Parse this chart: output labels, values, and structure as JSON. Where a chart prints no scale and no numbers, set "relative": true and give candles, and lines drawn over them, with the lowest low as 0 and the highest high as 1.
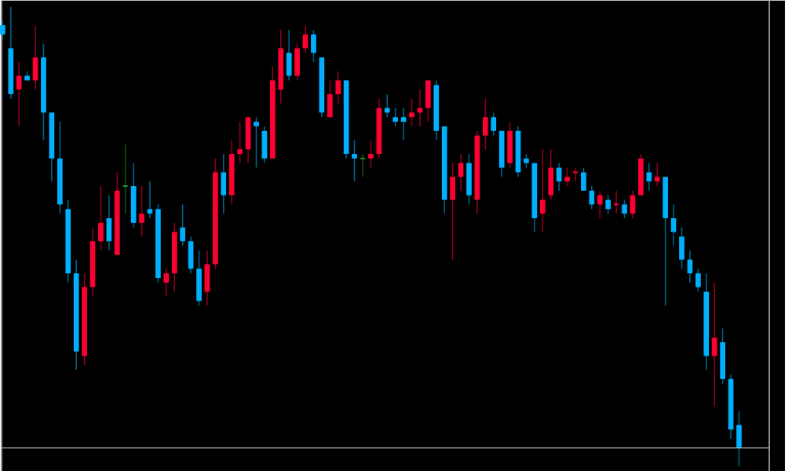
{
  "chart_data": {
    "type": "candlestick",
    "relative": true,
    "ref_lines": [
      {
        "axis": "y",
        "value": 0.04,
        "color": "#b2b2b2"
      }
    ],
    "categories": [
      null,
      null,
      null,
      null,
      null,
      null,
      null,
      null,
      null,
      null,
      null,
      null,
      null,
      null,
      null,
      null,
      null,
      null,
      null,
      null,
      null,
      null,
      null,
      null,
      null,
      null,
      null,
      null,
      null,
      null,
      null,
      null,
      null,
      null,
      null,
      null,
      null,
      null,
      null,
      null,
      null,
      null,
      null,
      null,
      null,
      null,
      null,
      null,
      null,
      null,
      null,
      null,
      null,
      null,
      null,
      null,
      null,
      null,
      null,
      null,
      null,
      null,
      null,
      null,
      null,
      null,
      null,
      null,
      null,
      null,
      null,
      null,
      null,
      null,
      null,
      null,
      null,
      null,
      null,
      null,
      null,
      null,
      null,
      null,
      null,
      null,
      null,
      null,
      null,
      null,
      null
    ],
    "ohlc": [
      [
        0.96,
        0.97,
        0.93,
        0.94
      ],
      [
        0.91,
        1,
        0.8,
        0.81
      ],
      [
        0.82,
        0.88,
        0.74,
        0.85
      ],
      [
        0.85,
        0.86,
        0.84,
        0.84
      ],
      [
        0.84,
        0.96,
        0.82,
        0.89
      ],
      [
        0.89,
        0.92,
        0.71,
        0.77
      ],
      [
        0.77,
        0.77,
        0.62,
        0.67
      ],
      [
        0.67,
        0.75,
        0.55,
        0.57
      ],
      [
        0.56,
        0.58,
        0.4,
        0.42
      ],
      [
        0.42,
        0.45,
        0.21,
        0.25
      ],
      [
        0.24,
        0.42,
        0.22,
        0.39
      ],
      [
        0.39,
        0.52,
        0.37,
        0.49
      ],
      [
        0.49,
        0.61,
        0.47,
        0.53
      ],
      [
        0.54,
        0.59,
        0.47,
        0.49
      ],
      [
        0.46,
        0.64,
        0.46,
        0.6
      ],
      [
        0.61,
        0.7,
        0.55,
        0.61
      ],
      [
        0.61,
        0.66,
        0.52,
        0.53
      ],
      [
        0.53,
        0.61,
        0.5,
        0.55
      ],
      [
        0.56,
        0.62,
        0.54,
        0.55
      ],
      [
        0.56,
        0.57,
        0.4,
        0.41
      ],
      [
        0.4,
        0.43,
        0.37,
        0.42
      ],
      [
        0.42,
        0.53,
        0.38,
        0.51
      ],
      [
        0.52,
        0.57,
        0.48,
        0.49
      ],
      [
        0.49,
        0.5,
        0.42,
        0.43
      ],
      [
        0.43,
        0.47,
        0.35,
        0.36
      ],
      [
        0.38,
        0.47,
        0.35,
        0.44
      ],
      [
        0.44,
        0.67,
        0.43,
        0.64
      ],
      [
        0.64,
        0.68,
        0.55,
        0.59
      ],
      [
        0.59,
        0.71,
        0.57,
        0.68
      ],
      [
        0.68,
        0.75,
        0.66,
        0.69
      ],
      [
        0.69,
        0.76,
        0.66,
        0.76
      ],
      [
        0.75,
        0.76,
        0.65,
        0.74
      ],
      [
        0.73,
        0.74,
        0.66,
        0.67
      ],
      [
        0.67,
        0.87,
        0.67,
        0.84
      ],
      [
        0.82,
        0.95,
        0.79,
        0.91
      ],
      [
        0.9,
        0.95,
        0.84,
        0.85
      ],
      [
        0.85,
        0.92,
        0.84,
        0.91
      ],
      [
        0.91,
        0.96,
        0.9,
        0.94
      ],
      [
        0.94,
        0.95,
        0.88,
        0.9
      ],
      [
        0.89,
        0.89,
        0.76,
        0.77
      ],
      [
        0.76,
        0.84,
        0.76,
        0.81
      ],
      [
        0.81,
        0.86,
        0.79,
        0.84
      ],
      [
        0.84,
        0.84,
        0.67,
        0.68
      ],
      [
        0.68,
        0.71,
        0.62,
        0.67
      ],
      [
        0.67,
        0.68,
        0.63,
        0.67
      ],
      [
        0.67,
        0.71,
        0.65,
        0.68
      ],
      [
        0.68,
        0.8,
        0.67,
        0.78
      ],
      [
        0.78,
        0.81,
        0.76,
        0.77
      ],
      [
        0.76,
        0.78,
        0.74,
        0.75
      ],
      [
        0.76,
        0.78,
        0.71,
        0.75
      ],
      [
        0.76,
        0.8,
        0.74,
        0.77
      ],
      [
        0.77,
        0.82,
        0.74,
        0.78
      ],
      [
        0.78,
        0.84,
        0.75,
        0.84
      ],
      [
        0.83,
        0.84,
        0.71,
        0.73
      ],
      [
        0.74,
        0.74,
        0.55,
        0.58
      ],
      [
        0.58,
        0.66,
        0.45,
        0.63
      ],
      [
        0.63,
        0.68,
        0.6,
        0.66
      ],
      [
        0.66,
        0.68,
        0.57,
        0.59
      ],
      [
        0.58,
        0.73,
        0.55,
        0.72
      ],
      [
        0.72,
        0.8,
        0.69,
        0.76
      ],
      [
        0.76,
        0.77,
        0.72,
        0.73
      ],
      [
        0.73,
        0.73,
        0.63,
        0.65
      ],
      [
        0.66,
        0.75,
        0.65,
        0.73
      ],
      [
        0.73,
        0.74,
        0.63,
        0.64
      ],
      [
        0.67,
        0.68,
        0.65,
        0.66
      ],
      [
        0.66,
        0.66,
        0.51,
        0.54
      ],
      [
        0.55,
        0.69,
        0.51,
        0.58
      ],
      [
        0.59,
        0.69,
        0.58,
        0.65
      ],
      [
        0.65,
        0.66,
        0.6,
        0.62
      ],
      [
        0.62,
        0.65,
        0.61,
        0.63
      ],
      [
        0.64,
        0.65,
        0.62,
        0.64
      ],
      [
        0.64,
        0.65,
        0.6,
        0.6
      ],
      [
        0.6,
        0.61,
        0.56,
        0.57
      ],
      [
        0.57,
        0.6,
        0.54,
        0.59
      ],
      [
        0.58,
        0.59,
        0.55,
        0.56
      ],
      [
        0.57,
        0.6,
        0.55,
        0.57
      ],
      [
        0.57,
        0.58,
        0.54,
        0.55
      ],
      [
        0.55,
        0.6,
        0.54,
        0.59
      ],
      [
        0.59,
        0.68,
        0.59,
        0.67
      ],
      [
        0.64,
        0.66,
        0.6,
        0.62
      ],
      [
        0.62,
        0.66,
        0.61,
        0.63
      ],
      [
        0.63,
        0.63,
        0.35,
        0.54
      ],
      [
        0.54,
        0.57,
        0.48,
        0.51
      ],
      [
        0.5,
        0.52,
        0.43,
        0.45
      ],
      [
        0.45,
        0.47,
        0.4,
        0.42
      ],
      [
        0.42,
        0.43,
        0.38,
        0.39
      ],
      [
        0.38,
        0.42,
        0.21,
        0.24
      ],
      [
        0.24,
        0.4,
        0.13,
        0.28
      ],
      [
        0.27,
        0.3,
        0.18,
        0.19
      ],
      [
        0.19,
        0.2,
        0.06,
        0.08
      ],
      [
        0.09,
        0.12,
        0,
        0.04
      ]
    ],
    "colors": [
      "#00b0ff",
      "#00b0ff",
      "#ff0033",
      "#00b0ff",
      "#ff0033",
      "#00b0ff",
      "#00b0ff",
      "#00b0ff",
      "#00b0ff",
      "#00b0ff",
      "#ff0033",
      "#ff0033",
      "#ff0033",
      "#00b0ff",
      "#ff0033",
      "#1f8f1f",
      "#00b0ff",
      "#ff0033",
      "#00b0ff",
      "#00b0ff",
      "#ff0033",
      "#ff0033",
      "#00b0ff",
      "#00b0ff",
      "#00b0ff",
      "#ff0033",
      "#ff0033",
      "#00b0ff",
      "#ff0033",
      "#ff0033",
      "#ff0033",
      "#00b0ff",
      "#00b0ff",
      "#ff0033",
      "#ff0033",
      "#00b0ff",
      "#ff0033",
      "#ff0033",
      "#00b0ff",
      "#00b0ff",
      "#ff0033",
      "#ff0033",
      "#00b0ff",
      "#00b0ff",
      "#1f8f1f",
      "#ff0033",
      "#ff0033",
      "#00b0ff",
      "#00b0ff",
      "#00b0ff",
      "#ff0033",
      "#ff0033",
      "#ff0033",
      "#00b0ff",
      "#00b0ff",
      "#ff0033",
      "#ff0033",
      "#00b0ff",
      "#ff0033",
      "#ff0033",
      "#00b0ff",
      "#00b0ff",
      "#ff0033",
      "#00b0ff",
      "#00b0ff",
      "#00b0ff",
      "#ff0033",
      "#ff0033",
      "#00b0ff",
      "#ff0033",
      "#ff0033",
      "#00b0ff",
      "#00b0ff",
      "#ff0033",
      "#00b0ff",
      "#ff0033",
      "#00b0ff",
      "#ff0033",
      "#ff0033",
      "#00b0ff",
      "#ff0033",
      "#00b0ff",
      "#00b0ff",
      "#00b0ff",
      "#00b0ff",
      "#00b0ff",
      "#00b0ff",
      "#ff0033",
      "#00b0ff",
      "#00b0ff",
      "#00b0ff"
    ]
  }
}
